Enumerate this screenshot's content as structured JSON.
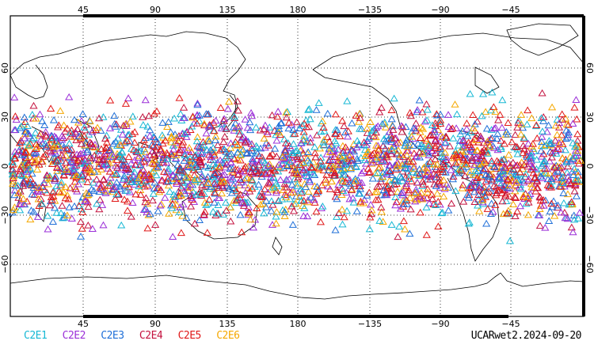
{
  "map": {
    "projection": "cylindrical equidistant, centered on 180",
    "lon_ticks": [
      "45",
      "90",
      "135",
      "180",
      "−135",
      "−90",
      "−45"
    ],
    "lat_ticks": [
      "60",
      "30",
      "0",
      "−30",
      "−60"
    ],
    "grid": "dotted",
    "marker": "hollow triangle",
    "latitude_extent_of_observations": [
      -50,
      50
    ]
  },
  "legend": [
    {
      "label": "C2E1",
      "color": "#17b8d4"
    },
    {
      "label": "C2E2",
      "color": "#9b2fd8"
    },
    {
      "label": "C2E3",
      "color": "#1f6fd8"
    },
    {
      "label": "C2E4",
      "color": "#c4123f"
    },
    {
      "label": "C2E5",
      "color": "#e01818"
    },
    {
      "label": "C2E6",
      "color": "#f5a800"
    }
  ],
  "stamp": "UCARwet2.2024-09-20"
}
